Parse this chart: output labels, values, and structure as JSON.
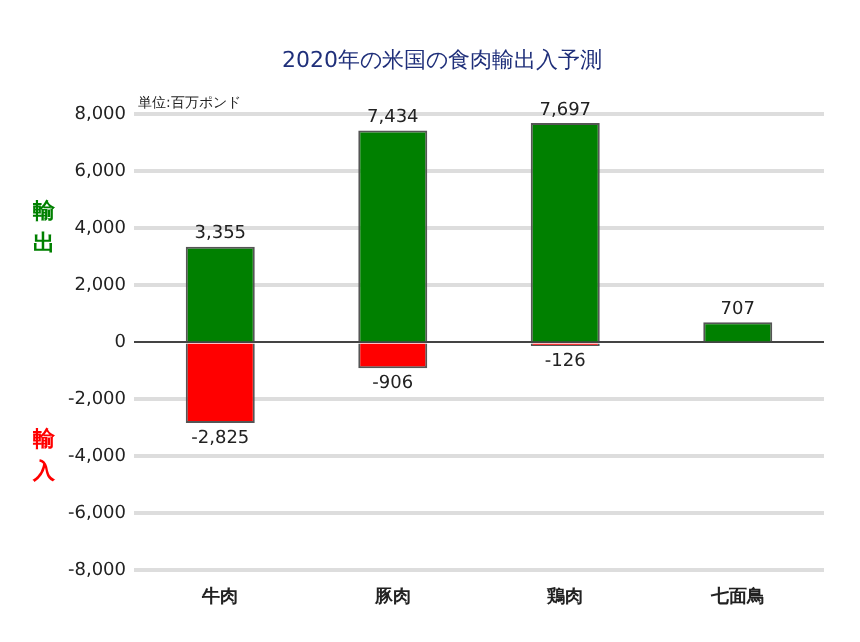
{
  "chart_data": {
    "type": "bar",
    "title": "2020年の米国の食肉輸出入予測",
    "annotations": [
      "単位:百万ポンド"
    ],
    "categories": [
      "牛肉",
      "豚肉",
      "鶏肉",
      "七面鳥"
    ],
    "series": [
      {
        "name": "輸出",
        "color": "#008000",
        "values": [
          3355,
          7434,
          7697,
          707
        ],
        "value_labels": [
          "3,355",
          "7,434",
          "7,697",
          "707"
        ]
      },
      {
        "name": "輸入",
        "color": "#ff0000",
        "values": [
          -2825,
          -906,
          -126,
          null
        ],
        "value_labels": [
          "-2,825",
          "-906",
          "-126",
          null
        ]
      }
    ],
    "stacked": true,
    "ylim": [
      -8000,
      8000
    ],
    "yticks": [
      {
        "value": -8000,
        "label": "-8,000"
      },
      {
        "value": -6000,
        "label": "-6,000"
      },
      {
        "value": -4000,
        "label": "-4,000"
      },
      {
        "value": -2000,
        "label": "-2,000"
      },
      0,
      {
        "value": 2000,
        "label": "2,000"
      },
      {
        "value": 4000,
        "label": "4,000"
      },
      {
        "value": 6000,
        "label": "6,000"
      },
      {
        "value": 8000,
        "label": "8,000"
      }
    ],
    "grid": "y"
  }
}
